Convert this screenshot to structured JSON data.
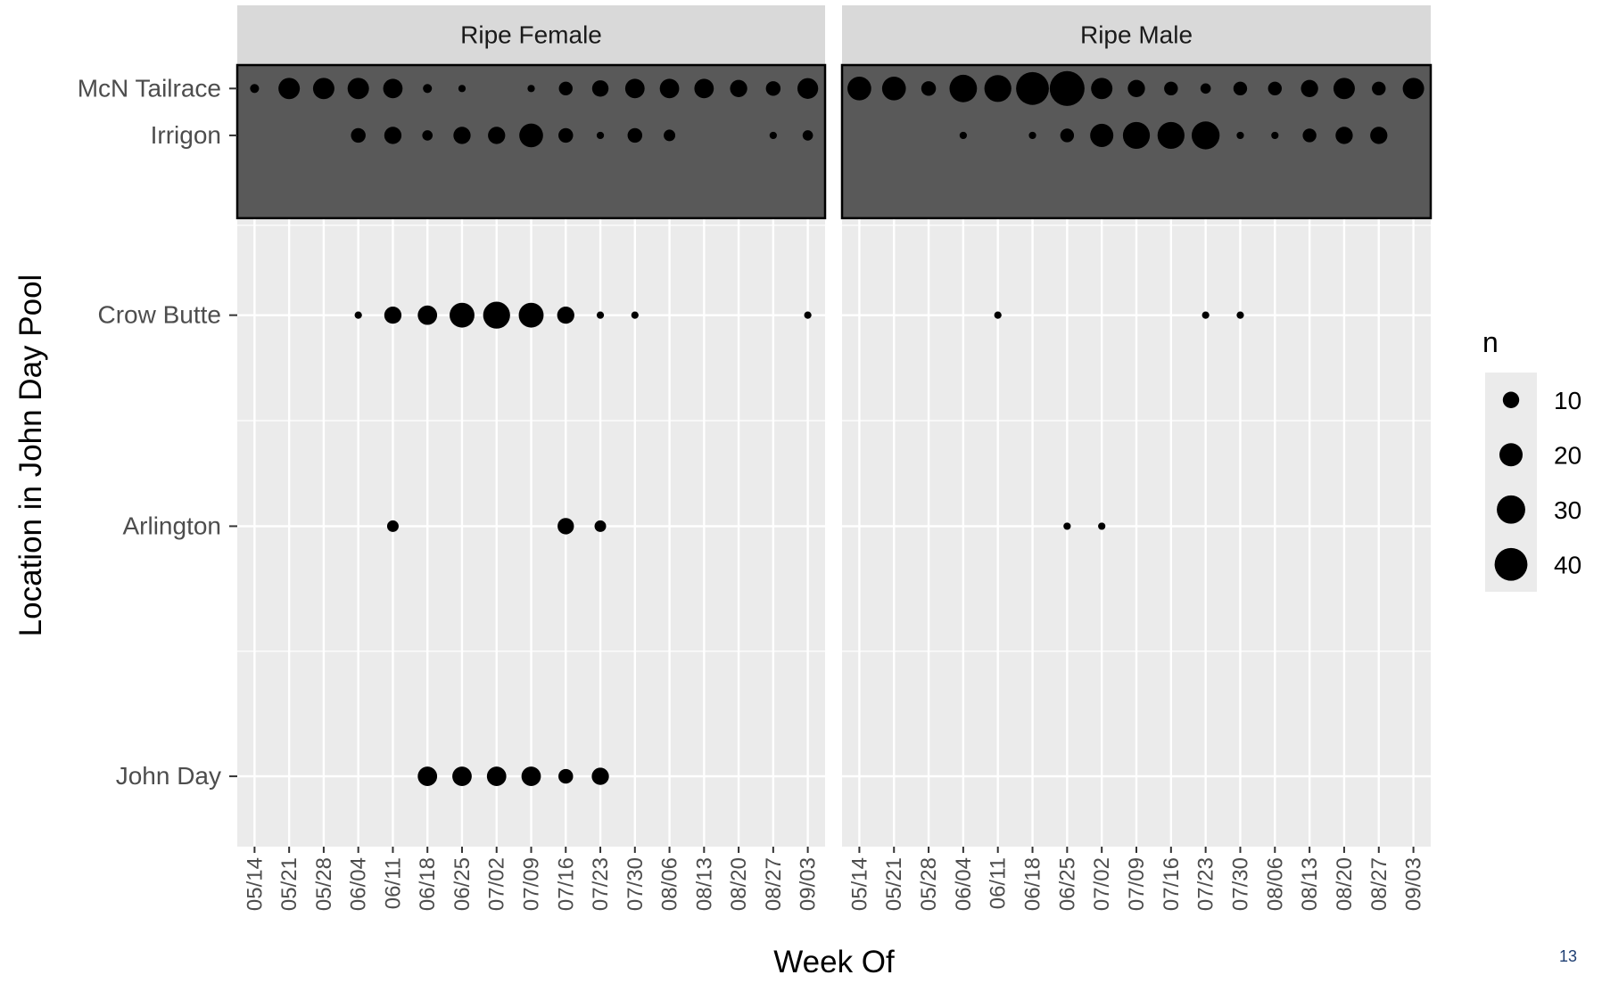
{
  "chart_data": {
    "type": "scatter",
    "title": "",
    "xlabel": "Week Of",
    "ylabel": "Location in John Day Pool",
    "size_legend_title": "n",
    "size_legend": [
      10,
      20,
      30,
      40
    ],
    "weeks": [
      "05/14",
      "05/21",
      "05/28",
      "06/04",
      "06/11",
      "06/18",
      "06/25",
      "07/02",
      "07/09",
      "07/16",
      "07/23",
      "07/30",
      "08/06",
      "08/13",
      "08/20",
      "08/27",
      "09/03"
    ],
    "locations": [
      "McN Tailrace",
      "Irrigon",
      "Crow Butte",
      "Arlington",
      "John Day"
    ],
    "location_positions": [
      97,
      91,
      68,
      41,
      9
    ],
    "y_range": [
      0,
      100
    ],
    "highlighted_locations": [
      "McN Tailrace",
      "Irrigon"
    ],
    "panels": [
      {
        "name": "Ripe Female",
        "points": [
          {
            "location": "McN Tailrace",
            "week": "05/14",
            "n": 3
          },
          {
            "location": "McN Tailrace",
            "week": "05/21",
            "n": 17
          },
          {
            "location": "McN Tailrace",
            "week": "05/28",
            "n": 17
          },
          {
            "location": "McN Tailrace",
            "week": "06/04",
            "n": 17
          },
          {
            "location": "McN Tailrace",
            "week": "06/11",
            "n": 14
          },
          {
            "location": "McN Tailrace",
            "week": "06/18",
            "n": 3
          },
          {
            "location": "McN Tailrace",
            "week": "06/25",
            "n": 2
          },
          {
            "location": "McN Tailrace",
            "week": "07/09",
            "n": 2
          },
          {
            "location": "McN Tailrace",
            "week": "07/16",
            "n": 7
          },
          {
            "location": "McN Tailrace",
            "week": "07/23",
            "n": 10
          },
          {
            "location": "McN Tailrace",
            "week": "07/30",
            "n": 14
          },
          {
            "location": "McN Tailrace",
            "week": "08/06",
            "n": 14
          },
          {
            "location": "McN Tailrace",
            "week": "08/13",
            "n": 14
          },
          {
            "location": "McN Tailrace",
            "week": "08/20",
            "n": 11
          },
          {
            "location": "McN Tailrace",
            "week": "08/27",
            "n": 8
          },
          {
            "location": "McN Tailrace",
            "week": "09/03",
            "n": 16
          },
          {
            "location": "Irrigon",
            "week": "06/04",
            "n": 8
          },
          {
            "location": "Irrigon",
            "week": "06/11",
            "n": 11
          },
          {
            "location": "Irrigon",
            "week": "06/18",
            "n": 4
          },
          {
            "location": "Irrigon",
            "week": "06/25",
            "n": 11
          },
          {
            "location": "Irrigon",
            "week": "07/02",
            "n": 11
          },
          {
            "location": "Irrigon",
            "week": "07/09",
            "n": 21
          },
          {
            "location": "Irrigon",
            "week": "07/16",
            "n": 8
          },
          {
            "location": "Irrigon",
            "week": "07/23",
            "n": 2
          },
          {
            "location": "Irrigon",
            "week": "07/30",
            "n": 8
          },
          {
            "location": "Irrigon",
            "week": "08/06",
            "n": 5
          },
          {
            "location": "Irrigon",
            "week": "08/27",
            "n": 2
          },
          {
            "location": "Irrigon",
            "week": "09/03",
            "n": 4
          },
          {
            "location": "Crow Butte",
            "week": "06/04",
            "n": 2
          },
          {
            "location": "Crow Butte",
            "week": "06/11",
            "n": 11
          },
          {
            "location": "Crow Butte",
            "week": "06/18",
            "n": 14
          },
          {
            "location": "Crow Butte",
            "week": "06/25",
            "n": 23
          },
          {
            "location": "Crow Butte",
            "week": "07/02",
            "n": 27
          },
          {
            "location": "Crow Butte",
            "week": "07/09",
            "n": 23
          },
          {
            "location": "Crow Butte",
            "week": "07/16",
            "n": 11
          },
          {
            "location": "Crow Butte",
            "week": "07/23",
            "n": 2
          },
          {
            "location": "Crow Butte",
            "week": "07/30",
            "n": 2
          },
          {
            "location": "Crow Butte",
            "week": "09/03",
            "n": 2
          },
          {
            "location": "Arlington",
            "week": "06/11",
            "n": 5
          },
          {
            "location": "Arlington",
            "week": "07/16",
            "n": 10
          },
          {
            "location": "Arlington",
            "week": "07/23",
            "n": 5
          },
          {
            "location": "John Day",
            "week": "06/18",
            "n": 14
          },
          {
            "location": "John Day",
            "week": "06/25",
            "n": 14
          },
          {
            "location": "John Day",
            "week": "07/02",
            "n": 14
          },
          {
            "location": "John Day",
            "week": "07/09",
            "n": 14
          },
          {
            "location": "John Day",
            "week": "07/16",
            "n": 8
          },
          {
            "location": "John Day",
            "week": "07/23",
            "n": 11
          }
        ]
      },
      {
        "name": "Ripe Male",
        "points": [
          {
            "location": "McN Tailrace",
            "week": "05/14",
            "n": 21
          },
          {
            "location": "McN Tailrace",
            "week": "05/21",
            "n": 21
          },
          {
            "location": "McN Tailrace",
            "week": "05/28",
            "n": 8
          },
          {
            "location": "McN Tailrace",
            "week": "06/04",
            "n": 28
          },
          {
            "location": "McN Tailrace",
            "week": "06/11",
            "n": 27
          },
          {
            "location": "McN Tailrace",
            "week": "06/18",
            "n": 40
          },
          {
            "location": "McN Tailrace",
            "week": "06/25",
            "n": 45
          },
          {
            "location": "McN Tailrace",
            "week": "07/02",
            "n": 17
          },
          {
            "location": "McN Tailrace",
            "week": "07/09",
            "n": 11
          },
          {
            "location": "McN Tailrace",
            "week": "07/16",
            "n": 7
          },
          {
            "location": "McN Tailrace",
            "week": "07/23",
            "n": 4
          },
          {
            "location": "McN Tailrace",
            "week": "07/30",
            "n": 7
          },
          {
            "location": "McN Tailrace",
            "week": "08/06",
            "n": 7
          },
          {
            "location": "McN Tailrace",
            "week": "08/13",
            "n": 11
          },
          {
            "location": "McN Tailrace",
            "week": "08/20",
            "n": 17
          },
          {
            "location": "McN Tailrace",
            "week": "08/27",
            "n": 7
          },
          {
            "location": "McN Tailrace",
            "week": "09/03",
            "n": 17
          },
          {
            "location": "Irrigon",
            "week": "06/04",
            "n": 2
          },
          {
            "location": "Irrigon",
            "week": "06/18",
            "n": 2
          },
          {
            "location": "Irrigon",
            "week": "06/25",
            "n": 7
          },
          {
            "location": "Irrigon",
            "week": "07/02",
            "n": 20
          },
          {
            "location": "Irrigon",
            "week": "07/09",
            "n": 27
          },
          {
            "location": "Irrigon",
            "week": "07/16",
            "n": 27
          },
          {
            "location": "Irrigon",
            "week": "07/23",
            "n": 29
          },
          {
            "location": "Irrigon",
            "week": "07/30",
            "n": 2
          },
          {
            "location": "Irrigon",
            "week": "08/06",
            "n": 2
          },
          {
            "location": "Irrigon",
            "week": "08/13",
            "n": 7
          },
          {
            "location": "Irrigon",
            "week": "08/20",
            "n": 11
          },
          {
            "location": "Irrigon",
            "week": "08/27",
            "n": 11
          },
          {
            "location": "Crow Butte",
            "week": "06/11",
            "n": 2
          },
          {
            "location": "Crow Butte",
            "week": "07/23",
            "n": 2
          },
          {
            "location": "Crow Butte",
            "week": "07/30",
            "n": 2
          },
          {
            "location": "Arlington",
            "week": "06/25",
            "n": 2
          },
          {
            "location": "Arlington",
            "week": "07/02",
            "n": 2
          }
        ]
      }
    ],
    "grid": true,
    "legend_position": "right"
  },
  "page_number": "13",
  "colors": {
    "panel_bg": "#ebebeb",
    "highlight_bg": "#595959",
    "strip_bg": "#d9d9d9",
    "grid": "#ffffff",
    "point": "#000000",
    "axis_text": "#4d4d4d"
  }
}
